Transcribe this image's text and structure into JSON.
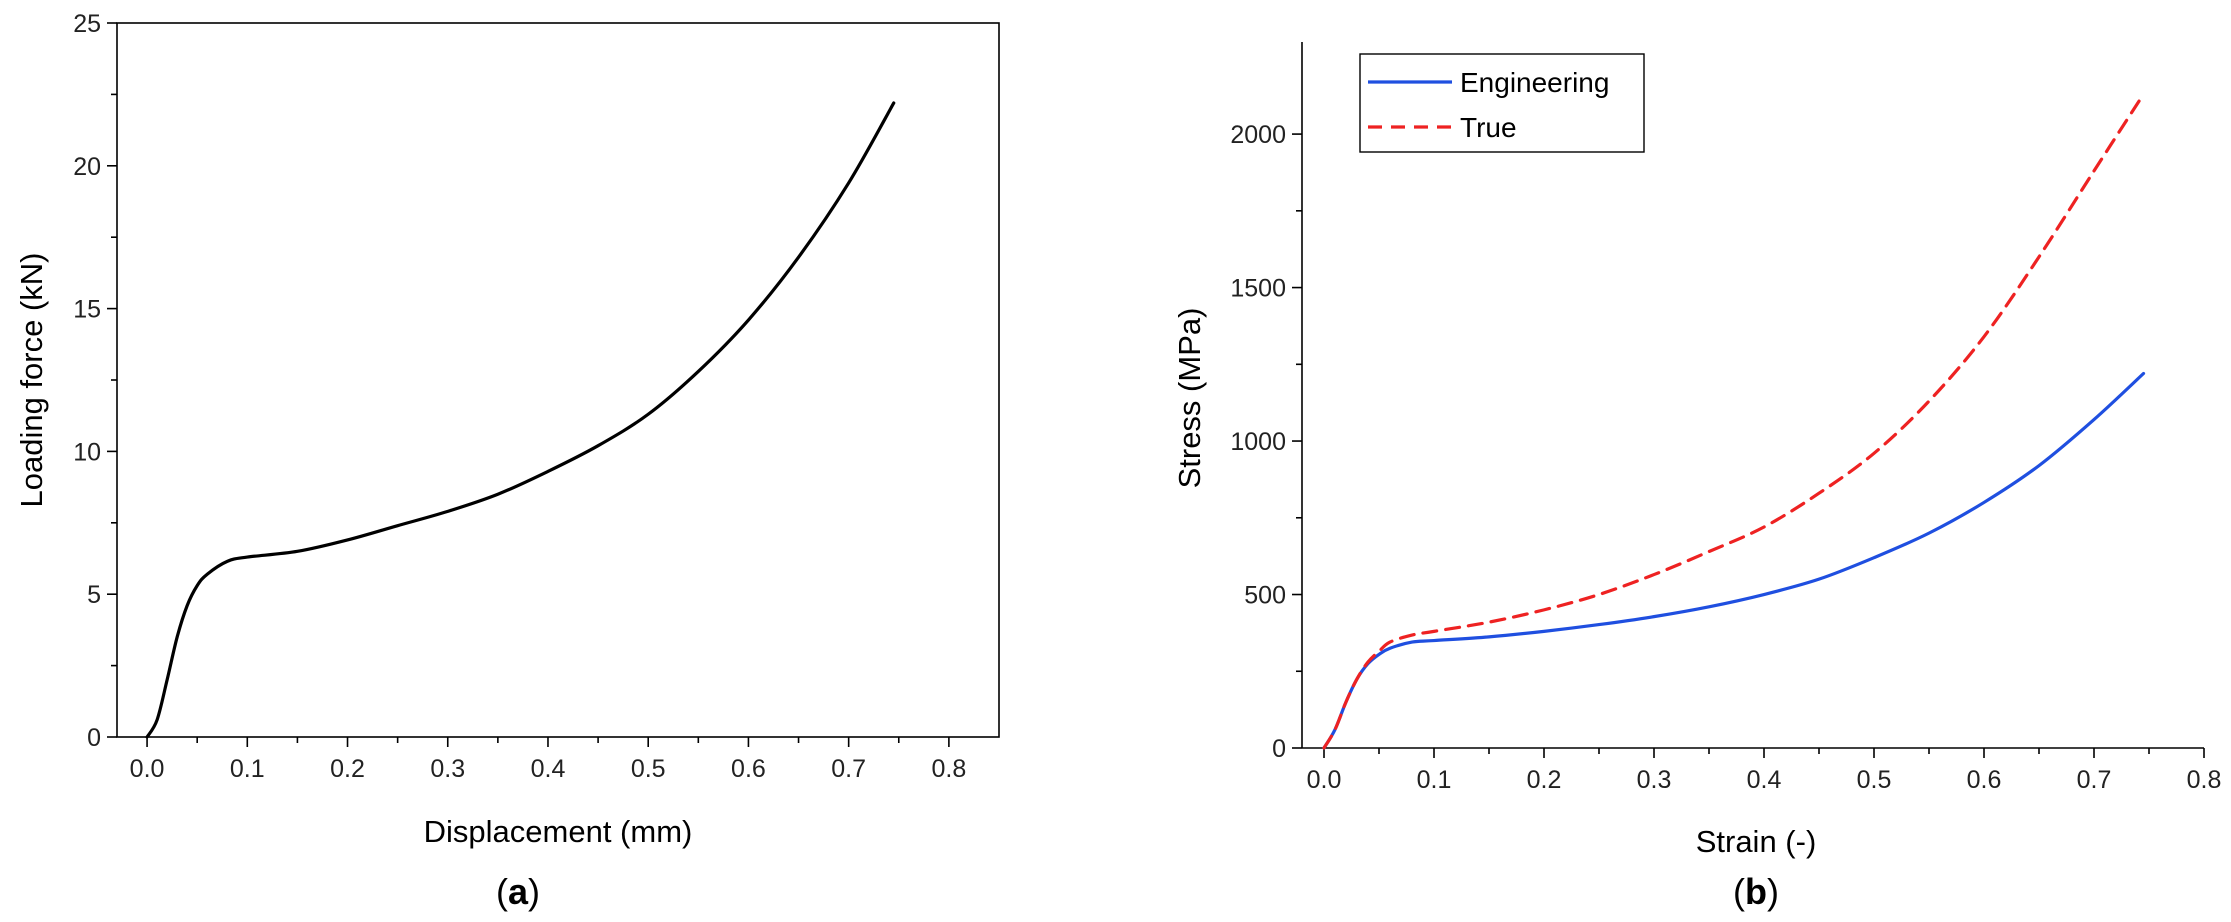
{
  "chart_data": [
    {
      "id": "a",
      "type": "line",
      "panel_label": "a",
      "title": "",
      "xlabel": "Displacement (mm)",
      "ylabel": "Loading force (kN)",
      "xlim": [
        -0.03,
        0.85
      ],
      "ylim": [
        0,
        25
      ],
      "xticks": [
        0.0,
        0.1,
        0.2,
        0.3,
        0.4,
        0.5,
        0.6,
        0.7,
        0.8
      ],
      "xtick_labels": [
        "0.0",
        "0.1",
        "0.2",
        "0.3",
        "0.4",
        "0.5",
        "0.6",
        "0.7",
        "0.8"
      ],
      "yticks": [
        0,
        5,
        10,
        15,
        20,
        25
      ],
      "ytick_labels": [
        "0",
        "5",
        "10",
        "15",
        "20",
        "25"
      ],
      "series": [
        {
          "name": "Loading force",
          "color": "#000000",
          "dash": "",
          "x": [
            0.0,
            0.01,
            0.02,
            0.03,
            0.04,
            0.05,
            0.06,
            0.08,
            0.1,
            0.15,
            0.2,
            0.25,
            0.3,
            0.35,
            0.4,
            0.45,
            0.5,
            0.55,
            0.6,
            0.65,
            0.7,
            0.745
          ],
          "y": [
            0.0,
            0.6,
            2.0,
            3.5,
            4.6,
            5.3,
            5.7,
            6.15,
            6.3,
            6.5,
            6.9,
            7.4,
            7.9,
            8.5,
            9.3,
            10.2,
            11.3,
            12.8,
            14.6,
            16.8,
            19.4,
            22.2
          ]
        }
      ]
    },
    {
      "id": "b",
      "type": "line",
      "panel_label": "b",
      "title": "",
      "xlabel": "Strain (-)",
      "ylabel": "Stress (MPa)",
      "xlim": [
        -0.02,
        0.8
      ],
      "ylim": [
        0,
        2300
      ],
      "xticks": [
        0.0,
        0.1,
        0.2,
        0.3,
        0.4,
        0.5,
        0.6,
        0.7,
        0.8
      ],
      "xtick_labels": [
        "0.0",
        "0.1",
        "0.2",
        "0.3",
        "0.4",
        "0.5",
        "0.6",
        "0.7",
        "0.8"
      ],
      "yticks": [
        0,
        500,
        1000,
        1500,
        2000
      ],
      "ytick_labels": [
        "0",
        "500",
        "1000",
        "1500",
        "2000"
      ],
      "legend_position": "top-left",
      "series": [
        {
          "name": "Engineering",
          "color": "#1f4fe0",
          "dash": "",
          "x": [
            0.0,
            0.01,
            0.02,
            0.03,
            0.04,
            0.05,
            0.06,
            0.08,
            0.1,
            0.15,
            0.2,
            0.25,
            0.3,
            0.35,
            0.4,
            0.45,
            0.5,
            0.55,
            0.6,
            0.65,
            0.7,
            0.745
          ],
          "y": [
            0,
            60,
            150,
            225,
            275,
            305,
            325,
            345,
            350,
            362,
            380,
            402,
            428,
            460,
            500,
            550,
            620,
            700,
            800,
            920,
            1070,
            1220
          ]
        },
        {
          "name": "True",
          "color": "#ee2222",
          "dash": "14,9",
          "x": [
            0.0,
            0.01,
            0.02,
            0.03,
            0.04,
            0.05,
            0.06,
            0.08,
            0.1,
            0.15,
            0.2,
            0.25,
            0.3,
            0.35,
            0.4,
            0.45,
            0.5,
            0.55,
            0.6,
            0.65,
            0.7,
            0.745
          ],
          "y": [
            0,
            60,
            150,
            225,
            280,
            315,
            345,
            368,
            380,
            410,
            450,
            500,
            565,
            640,
            720,
            830,
            960,
            1130,
            1340,
            1600,
            1880,
            2130
          ]
        }
      ]
    }
  ]
}
